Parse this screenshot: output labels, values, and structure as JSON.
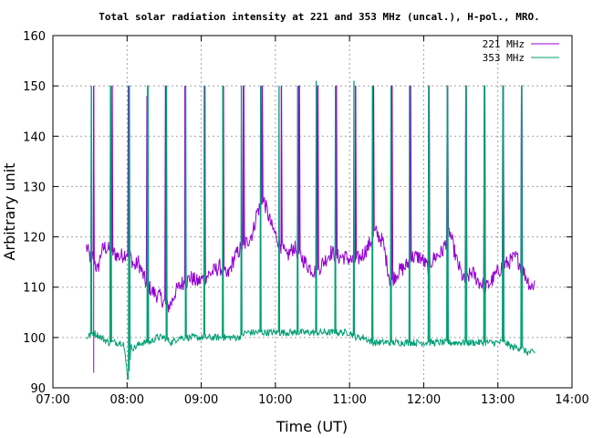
{
  "chart_data": {
    "type": "line",
    "title": "Total solar radiation intensity at 221 and 353 MHz (uncal.), H-pol., MRO.",
    "xlabel": "Time (UT)",
    "ylabel": "Arbitrary unit",
    "xlim_hours": [
      7.0,
      14.0
    ],
    "ylim": [
      90,
      160
    ],
    "x_ticks": [
      "07:00",
      "08:00",
      "09:00",
      "10:00",
      "11:00",
      "12:00",
      "13:00",
      "14:00"
    ],
    "y_ticks": [
      "90",
      "100",
      "110",
      "120",
      "130",
      "140",
      "150",
      "160"
    ],
    "grid": true,
    "legend_position": "top-right",
    "series": [
      {
        "name": "221 MHz",
        "color": "#9400d3",
        "baseline": {
          "x_hours": [
            7.45,
            7.5,
            7.55,
            7.6,
            7.65,
            7.7,
            7.8,
            7.9,
            8.0,
            8.05,
            8.1,
            8.15,
            8.25,
            8.35,
            8.45,
            8.55,
            8.6,
            8.65,
            8.75,
            8.8,
            8.85,
            8.95,
            9.05,
            9.15,
            9.25,
            9.35,
            9.45,
            9.55,
            9.62,
            9.7,
            9.75,
            9.85,
            9.95,
            10.05,
            10.15,
            10.25,
            10.35,
            10.45,
            10.55,
            10.65,
            10.75,
            10.85,
            10.95,
            11.05,
            11.15,
            11.25,
            11.35,
            11.45,
            11.55,
            11.65,
            11.75,
            11.85,
            11.95,
            12.05,
            12.15,
            12.25,
            12.35,
            12.45,
            12.55,
            12.65,
            12.75,
            12.85,
            12.95,
            13.05,
            13.15,
            13.25,
            13.35,
            13.45,
            13.5
          ],
          "values": [
            118,
            116,
            116,
            113,
            117,
            118,
            117,
            116,
            117,
            116,
            114,
            115,
            111,
            109,
            108,
            106,
            107,
            109,
            111,
            111,
            112,
            111,
            112,
            113,
            114,
            112,
            116,
            118,
            119,
            121,
            125,
            127,
            122,
            119,
            116,
            118,
            116,
            114,
            113,
            115,
            117,
            116,
            116,
            115,
            116,
            118,
            121,
            119,
            111,
            113,
            114,
            116,
            116,
            114,
            116,
            117,
            121,
            115,
            111,
            113,
            111,
            110,
            112,
            114,
            115,
            116,
            113,
            110,
            111
          ]
        },
        "spikes": {
          "x_hours": [
            7.55,
            7.8,
            8.02,
            8.27,
            8.52,
            8.78,
            9.05,
            9.3,
            9.57,
            9.82,
            10.08,
            10.32,
            10.57,
            10.82,
            11.08,
            11.32,
            11.57,
            11.82,
            12.07,
            12.32,
            12.57,
            12.82,
            13.07,
            13.32
          ],
          "peaks": [
            150,
            150,
            150,
            148,
            150,
            150,
            150,
            150,
            150,
            150,
            150,
            150,
            150,
            150,
            150,
            150,
            150,
            150,
            150,
            150,
            150,
            150,
            150,
            150
          ]
        },
        "annotations": {
          "dip_value": 93,
          "dip_x_hours": 7.55
        }
      },
      {
        "name": "353 MHz",
        "color": "#009e73",
        "baseline": {
          "x_hours": [
            7.45,
            7.55,
            7.65,
            7.75,
            7.85,
            7.95,
            8.02,
            8.05,
            8.1,
            8.2,
            8.3,
            8.4,
            8.5,
            8.6,
            8.7,
            8.8,
            8.9,
            9.0,
            9.1,
            9.2,
            9.3,
            9.4,
            9.5,
            9.6,
            9.7,
            9.8,
            9.9,
            10.0,
            10.1,
            10.2,
            10.3,
            10.4,
            10.5,
            10.6,
            10.7,
            10.8,
            10.9,
            11.0,
            11.1,
            11.2,
            11.3,
            11.4,
            11.5,
            11.6,
            11.7,
            11.8,
            11.9,
            12.0,
            12.1,
            12.2,
            12.3,
            12.4,
            12.5,
            12.6,
            12.7,
            12.8,
            12.9,
            13.0,
            13.1,
            13.2,
            13.3,
            13.4,
            13.5
          ],
          "values": [
            100,
            101,
            100,
            99,
            99,
            99,
            91,
            98,
            98,
            99,
            99,
            100,
            100,
            99,
            100,
            100,
            100,
            100,
            100,
            100,
            100,
            100,
            100,
            101,
            101,
            101,
            101,
            101,
            101,
            101,
            101,
            101,
            101,
            101,
            101,
            101,
            101,
            101,
            100,
            100,
            99,
            99,
            99,
            99,
            99,
            99,
            99,
            99,
            99,
            99,
            99,
            99,
            99,
            99,
            99,
            99,
            99,
            99,
            99,
            98,
            98,
            97,
            97
          ]
        },
        "spikes": {
          "x_hours": [
            7.52,
            7.78,
            8.03,
            8.28,
            8.53,
            8.79,
            9.04,
            9.29,
            9.54,
            9.8,
            10.05,
            10.3,
            10.55,
            10.81,
            11.06,
            11.31,
            11.56,
            11.81,
            12.07,
            12.32,
            12.57,
            12.82,
            13.07,
            13.32
          ],
          "peaks": [
            150,
            150,
            150,
            150,
            150,
            150,
            150,
            150,
            150,
            150,
            150,
            150,
            151,
            150,
            151,
            150,
            150,
            150,
            150,
            150,
            150,
            150,
            150,
            150
          ]
        }
      }
    ]
  }
}
